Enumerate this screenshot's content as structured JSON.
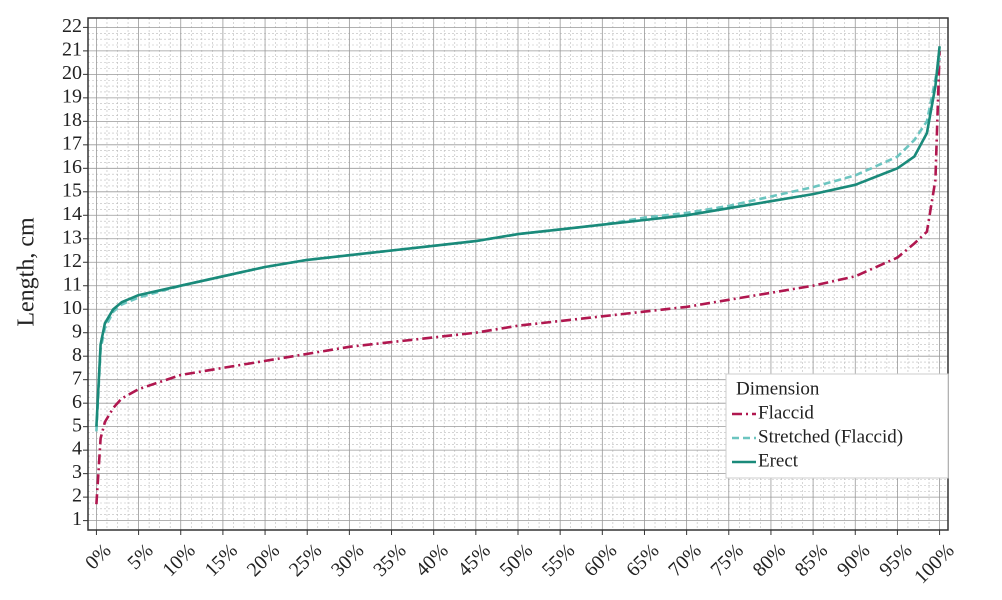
{
  "chart_data": {
    "type": "line",
    "y_label": "Length, cm",
    "legend_title": "Dimension",
    "legend": "lower right",
    "grid": true,
    "x": [
      0,
      0.5,
      1,
      2,
      3,
      5,
      10,
      15,
      20,
      25,
      30,
      35,
      40,
      45,
      50,
      55,
      60,
      65,
      70,
      75,
      80,
      85,
      90,
      95,
      97,
      98.5,
      99.5,
      100
    ],
    "series": [
      {
        "name": "Flaccid",
        "color": "#b0174f",
        "dash": "10,4,2,4",
        "values": [
          1.7,
          4.5,
          5.2,
          5.8,
          6.2,
          6.6,
          7.2,
          7.5,
          7.8,
          8.1,
          8.4,
          8.6,
          8.8,
          9.0,
          9.3,
          9.5,
          9.7,
          9.9,
          10.1,
          10.4,
          10.7,
          11.0,
          11.4,
          12.2,
          12.8,
          13.3,
          15.5,
          21.0
        ]
      },
      {
        "name": "Stretched (Flaccid)",
        "color": "#6cc5c0",
        "dash": "7,4",
        "values": [
          4.8,
          8.3,
          9.2,
          9.9,
          10.2,
          10.5,
          11.0,
          11.4,
          11.8,
          12.1,
          12.3,
          12.5,
          12.7,
          12.9,
          13.2,
          13.4,
          13.6,
          13.9,
          14.1,
          14.4,
          14.8,
          15.2,
          15.7,
          16.5,
          17.2,
          18.0,
          19.8,
          20.7
        ]
      },
      {
        "name": "Erect",
        "color": "#1a8a7a",
        "dash": "",
        "values": [
          5.0,
          8.5,
          9.4,
          10.0,
          10.3,
          10.6,
          11.0,
          11.4,
          11.8,
          12.1,
          12.3,
          12.5,
          12.7,
          12.9,
          13.2,
          13.4,
          13.6,
          13.8,
          14.0,
          14.3,
          14.6,
          14.9,
          15.3,
          16.0,
          16.5,
          17.5,
          19.5,
          21.2
        ]
      }
    ],
    "xlim": [
      -1,
      101
    ],
    "xticks": [
      {
        "value": 0,
        "label": "0%"
      },
      {
        "value": 5,
        "label": "5%"
      },
      {
        "value": 10,
        "label": "10%"
      },
      {
        "value": 15,
        "label": "15%"
      },
      {
        "value": 20,
        "label": "20%"
      },
      {
        "value": 25,
        "label": "25%"
      },
      {
        "value": 30,
        "label": "30%"
      },
      {
        "value": 35,
        "label": "35%"
      },
      {
        "value": 40,
        "label": "40%"
      },
      {
        "value": 45,
        "label": "45%"
      },
      {
        "value": 50,
        "label": "50%"
      },
      {
        "value": 55,
        "label": "55%"
      },
      {
        "value": 60,
        "label": "60%"
      },
      {
        "value": 65,
        "label": "65%"
      },
      {
        "value": 70,
        "label": "70%"
      },
      {
        "value": 75,
        "label": "75%"
      },
      {
        "value": 80,
        "label": "80%"
      },
      {
        "value": 85,
        "label": "85%"
      },
      {
        "value": 90,
        "label": "90%"
      },
      {
        "value": 95,
        "label": "95%"
      },
      {
        "value": 100,
        "label": "100%"
      }
    ],
    "ylim": [
      0.6,
      22.4
    ],
    "yticks": [
      1,
      2,
      3,
      4,
      5,
      6,
      7,
      8,
      9,
      10,
      11,
      12,
      13,
      14,
      15,
      16,
      17,
      18,
      19,
      20,
      21,
      22
    ]
  }
}
